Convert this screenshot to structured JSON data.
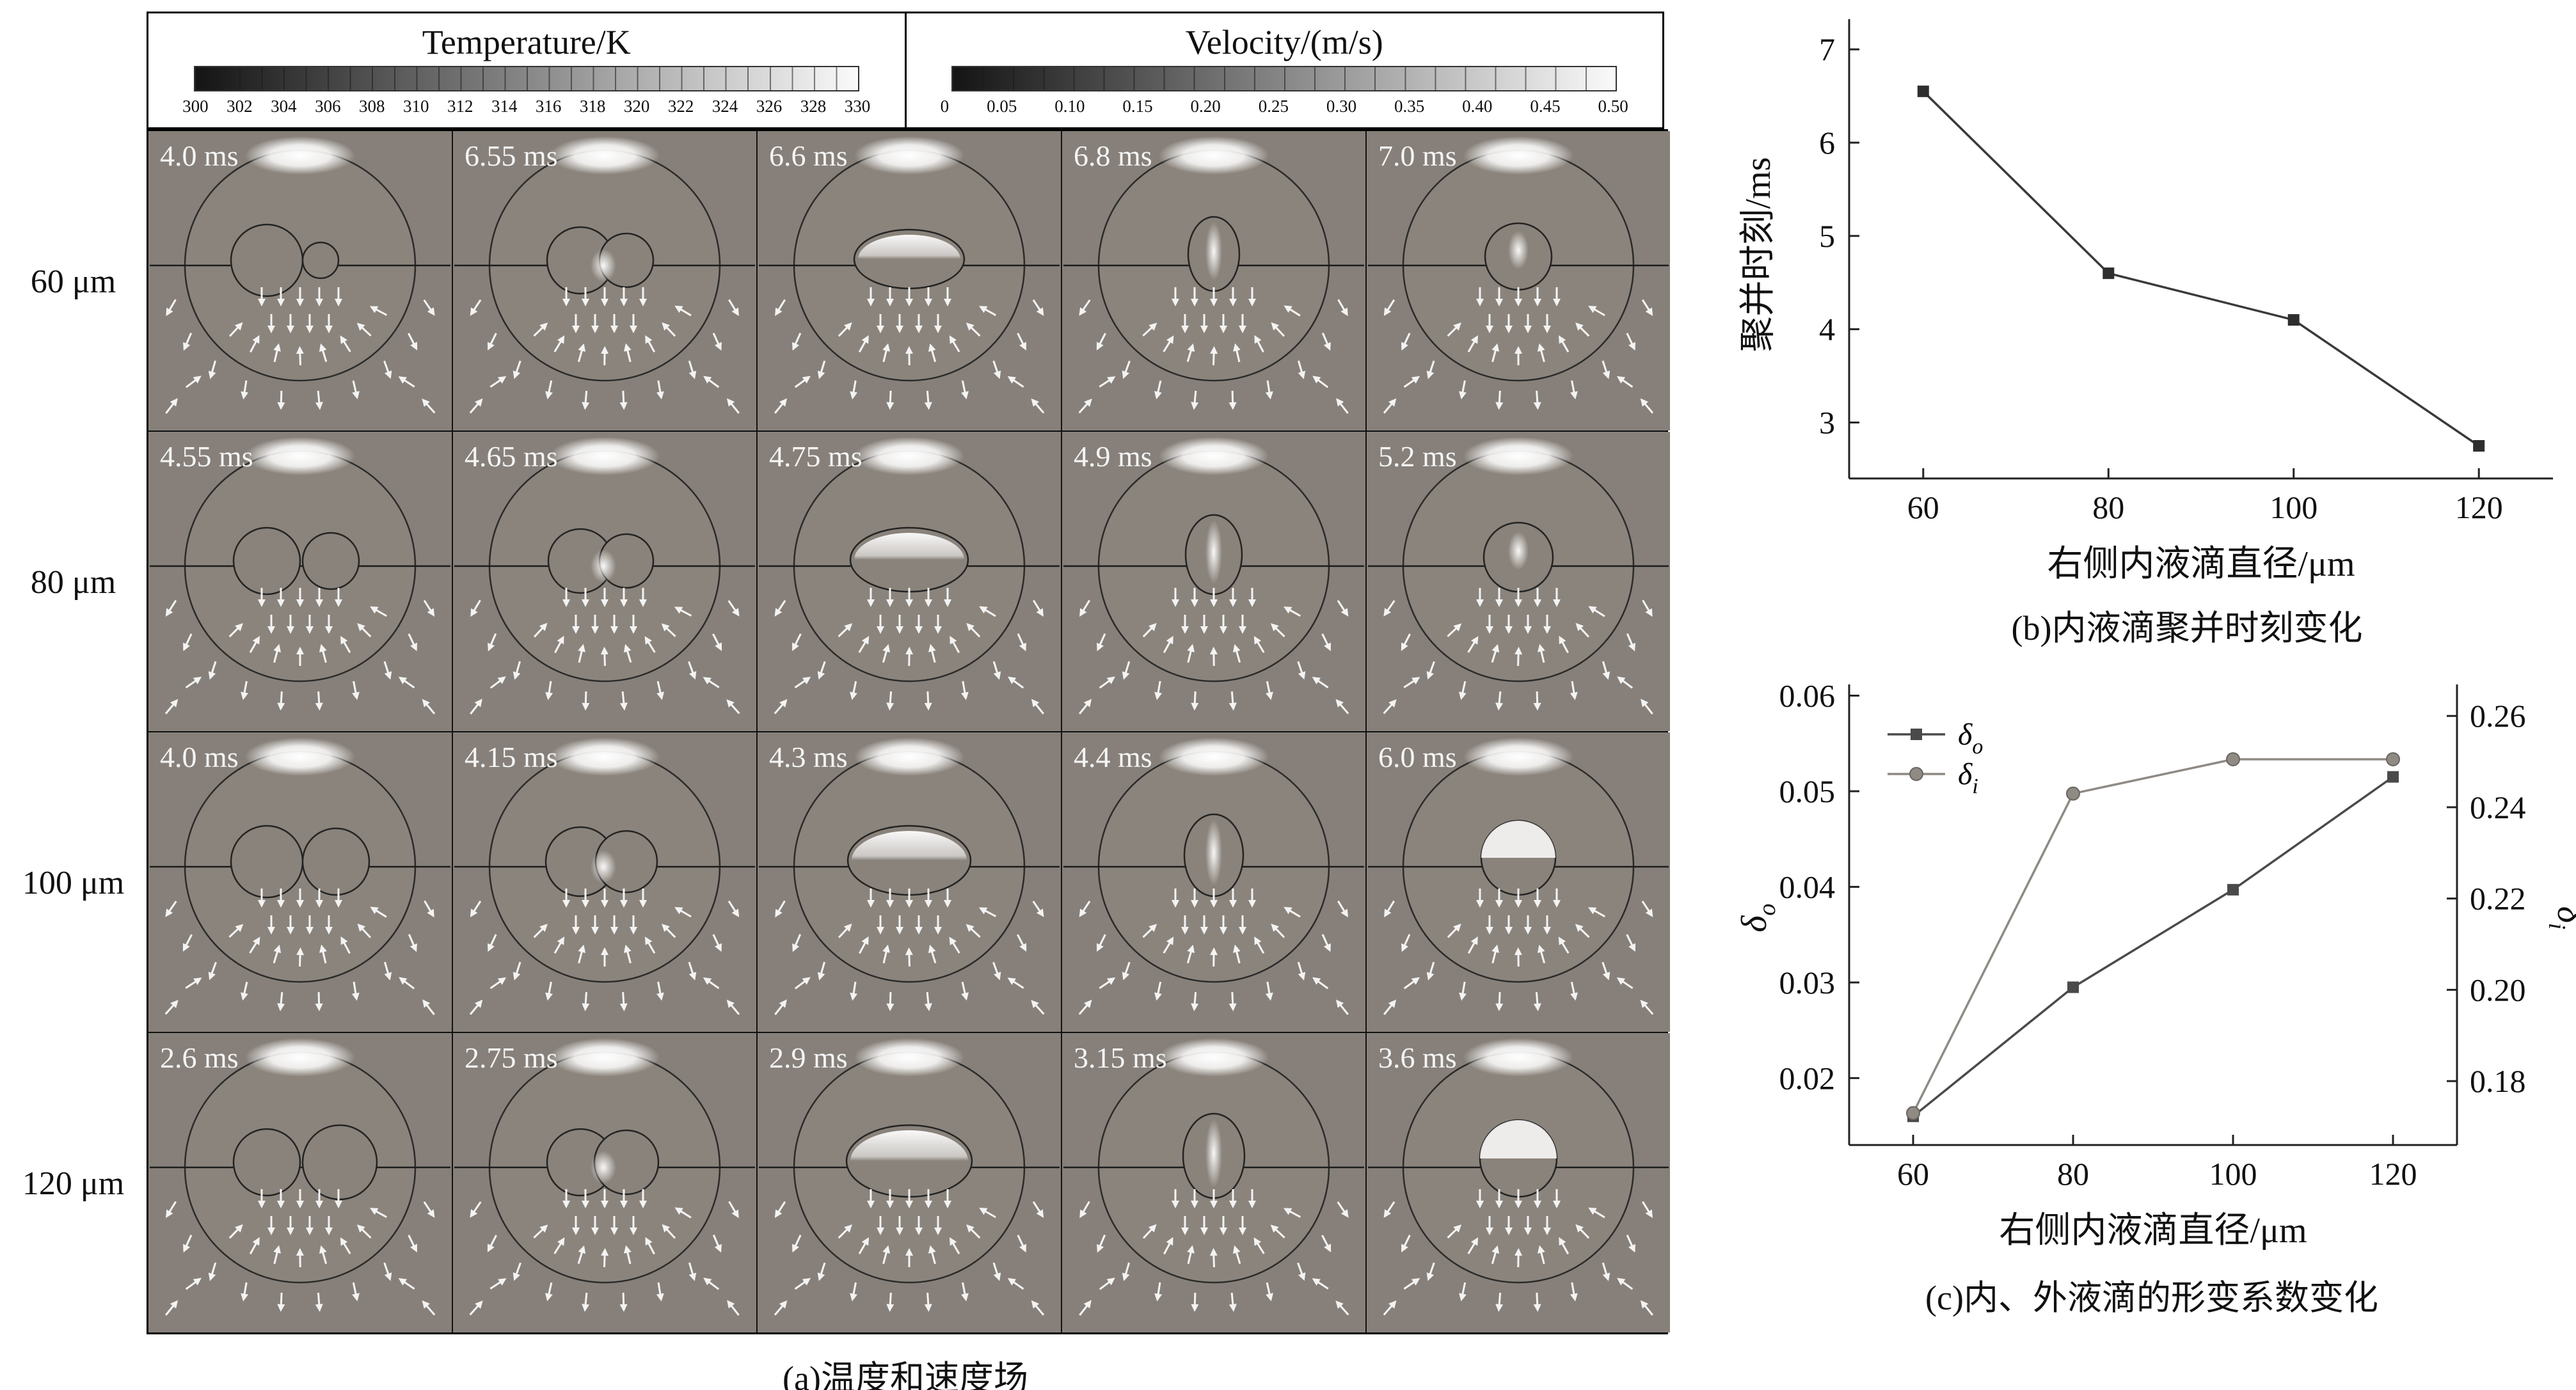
{
  "figure": {
    "caption_a": "(a)温度和速度场",
    "caption_b": "(b)内液滴聚并时刻变化",
    "caption_c": "(c)内、外液滴的形变系数变化"
  },
  "colors": {
    "cell_background": "#87807a",
    "droplet_fill": "#8a837b",
    "droplet_outline": "#242424",
    "arrow_color": "#f3f3f3",
    "axis_color": "#222222",
    "series_dark": "#3a3a3a",
    "series_light": "#8f8a84"
  },
  "colorbars": {
    "temperature": {
      "title": "Temperature/K",
      "ticks": [
        "300",
        "302",
        "304",
        "306",
        "308",
        "310",
        "312",
        "314",
        "316",
        "318",
        "320",
        "322",
        "324",
        "326",
        "328",
        "330"
      ]
    },
    "velocity": {
      "title": "Velocity/(m/s)",
      "ticks": [
        "0",
        "0.05",
        "0.10",
        "0.15",
        "0.20",
        "0.25",
        "0.30",
        "0.35",
        "0.40",
        "0.45",
        "0.50"
      ]
    }
  },
  "panel_a": {
    "rows": [
      {
        "label": "60 μm",
        "times": [
          "4.0 ms",
          "6.55 ms",
          "6.6 ms",
          "6.8 ms",
          "7.0 ms"
        ]
      },
      {
        "label": "80 μm",
        "times": [
          "4.55 ms",
          "4.65 ms",
          "4.75 ms",
          "4.9 ms",
          "5.2 ms"
        ]
      },
      {
        "label": "100 μm",
        "times": [
          "4.0 ms",
          "4.15 ms",
          "4.3 ms",
          "4.4 ms",
          "6.0 ms"
        ]
      },
      {
        "label": "120 μm",
        "times": [
          "2.6 ms",
          "2.75 ms",
          "2.9 ms",
          "3.15 ms",
          "3.6 ms"
        ]
      }
    ]
  },
  "chart_data": [
    {
      "id": "panel_b",
      "type": "line",
      "title": "",
      "xlabel": "右侧内液滴直径/μm",
      "ylabel": "聚并时刻/ms",
      "x": [
        60,
        80,
        100,
        120
      ],
      "series": [
        {
          "name": "coalescence-time",
          "marker": "square",
          "color": "#3a3a3a",
          "values": [
            6.55,
            4.6,
            4.1,
            2.75
          ]
        }
      ],
      "xticks": [
        "60",
        "80",
        "100",
        "120"
      ],
      "yticks": [
        "3",
        "4",
        "5",
        "6",
        "7"
      ],
      "xlim": [
        52,
        128
      ],
      "ylim": [
        2.4,
        7.2
      ],
      "grid": false,
      "legend": "none"
    },
    {
      "id": "panel_c",
      "type": "line-dual-axis",
      "title": "",
      "xlabel": "右侧内液滴直径/μm",
      "ylabel_left": {
        "symbol": "δ",
        "sub": "o"
      },
      "ylabel_right": {
        "symbol": "δ",
        "sub": "i"
      },
      "x": [
        60,
        80,
        100,
        120
      ],
      "series": [
        {
          "name": "delta_o",
          "axis": "left",
          "marker": "square",
          "color": "#4a4a4a",
          "label": {
            "symbol": "δ",
            "sub": "o"
          },
          "values": [
            0.016,
            0.0295,
            0.0397,
            0.0515
          ]
        },
        {
          "name": "delta_i",
          "axis": "right",
          "marker": "circle",
          "color": "#8f8a84",
          "label": {
            "symbol": "δ",
            "sub": "i"
          },
          "values": [
            0.173,
            0.243,
            0.2505,
            0.2505
          ]
        }
      ],
      "xticks": [
        "60",
        "80",
        "100",
        "120"
      ],
      "yticks_left": [
        "0.02",
        "0.03",
        "0.04",
        "0.05",
        "0.06"
      ],
      "yticks_right": [
        "0.18",
        "0.20",
        "0.22",
        "0.24",
        "0.26"
      ],
      "xlim": [
        52,
        128
      ],
      "ylim_left": [
        0.013,
        0.0605
      ],
      "ylim_right": [
        0.166,
        0.2655
      ],
      "grid": false,
      "legend_position": "top-left"
    }
  ]
}
